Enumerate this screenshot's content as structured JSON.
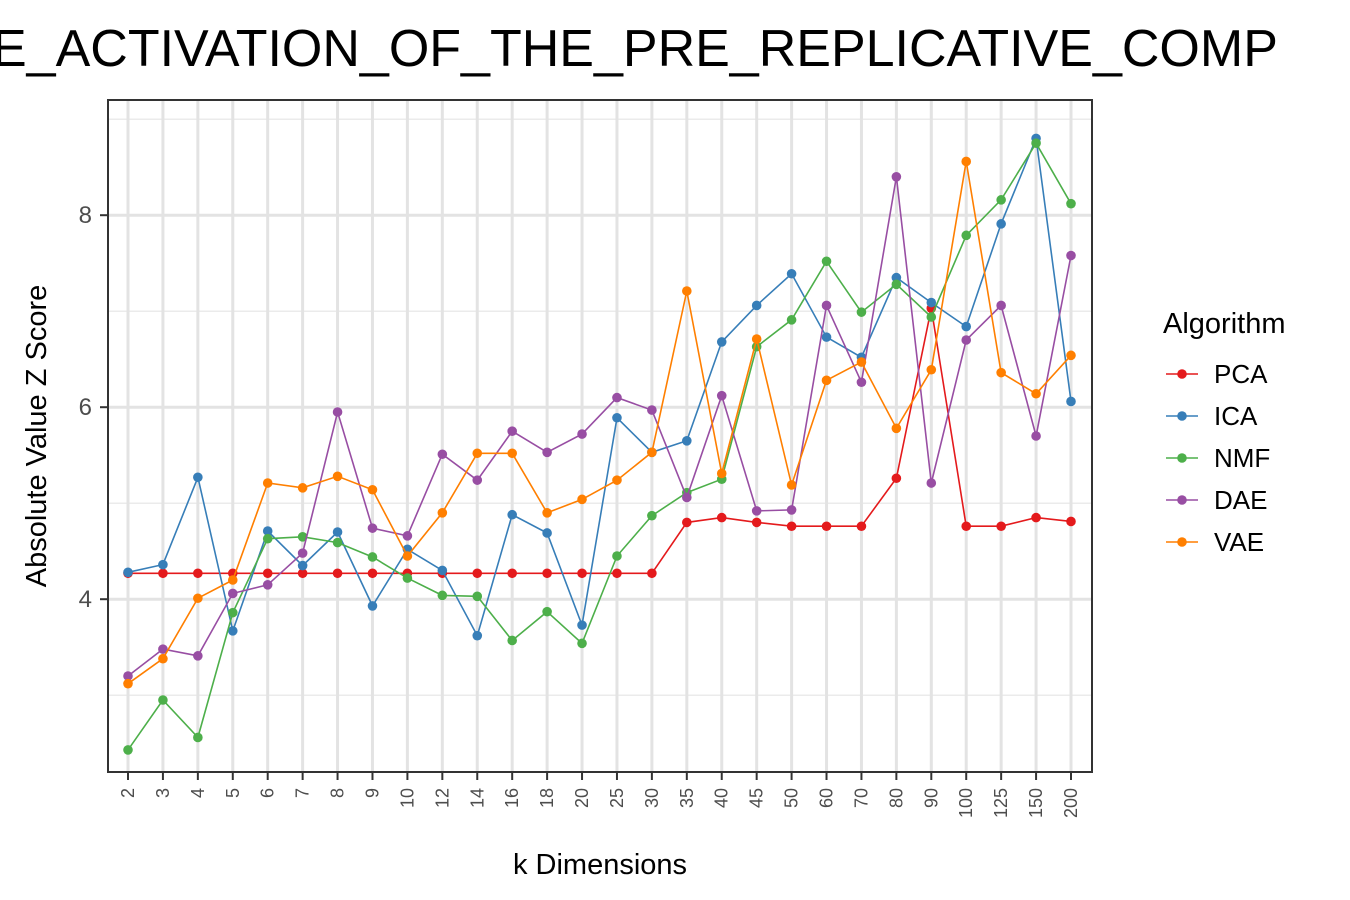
{
  "chart_data": {
    "type": "line",
    "title": "E_ACTIVATION_OF_THE_PRE_REPLICATIVE_COMP",
    "xlabel": "k Dimensions",
    "ylabel": "Absolute Value Z Score",
    "x": [
      "2",
      "3",
      "4",
      "5",
      "6",
      "7",
      "8",
      "9",
      "10",
      "12",
      "14",
      "16",
      "18",
      "20",
      "25",
      "30",
      "35",
      "40",
      "45",
      "50",
      "60",
      "70",
      "80",
      "90",
      "100",
      "125",
      "150",
      "200"
    ],
    "y_ticks": [
      "4",
      "6",
      "8"
    ],
    "ylim": [
      2.2,
      9.2
    ],
    "grid": true,
    "legend": {
      "title": "Algorithm",
      "position": "right"
    },
    "series": [
      {
        "name": "PCA",
        "color": "#E41A1C",
        "values": [
          4.27,
          4.27,
          4.27,
          4.27,
          4.27,
          4.27,
          4.27,
          4.27,
          4.27,
          4.27,
          4.27,
          4.27,
          4.27,
          4.27,
          4.27,
          4.27,
          4.8,
          4.85,
          4.8,
          4.76,
          4.76,
          4.76,
          5.26,
          7.03,
          4.76,
          4.76,
          4.85,
          4.81
        ]
      },
      {
        "name": "ICA",
        "color": "#377EB8",
        "values": [
          4.28,
          4.36,
          5.27,
          3.67,
          4.71,
          4.35,
          4.7,
          3.93,
          4.52,
          4.3,
          3.62,
          4.88,
          4.69,
          3.73,
          5.89,
          5.53,
          5.65,
          6.68,
          7.06,
          7.39,
          6.73,
          6.52,
          7.35,
          7.09,
          6.84,
          7.91,
          8.8,
          6.06
        ]
      },
      {
        "name": "NMF",
        "color": "#4DAF4A",
        "values": [
          2.43,
          2.95,
          2.56,
          3.86,
          4.63,
          4.65,
          4.59,
          4.44,
          4.22,
          4.04,
          4.03,
          3.57,
          3.87,
          3.54,
          4.45,
          4.87,
          5.11,
          5.25,
          6.63,
          6.91,
          7.52,
          6.99,
          7.28,
          6.94,
          7.79,
          8.16,
          8.75,
          8.12
        ]
      },
      {
        "name": "DAE",
        "color": "#984EA3",
        "values": [
          3.2,
          3.48,
          3.41,
          4.06,
          4.15,
          4.48,
          5.95,
          4.74,
          4.66,
          5.51,
          5.24,
          5.75,
          5.53,
          5.72,
          6.1,
          5.97,
          5.06,
          6.12,
          4.92,
          4.93,
          7.06,
          6.26,
          8.4,
          5.21,
          6.7,
          7.06,
          5.7,
          7.58
        ]
      },
      {
        "name": "VAE",
        "color": "#FF7F00",
        "values": [
          3.12,
          3.38,
          4.01,
          4.2,
          5.21,
          5.16,
          5.28,
          5.14,
          4.45,
          4.9,
          5.52,
          5.52,
          4.9,
          5.04,
          5.24,
          5.53,
          7.21,
          5.31,
          6.71,
          5.19,
          6.28,
          6.47,
          5.78,
          6.39,
          8.56,
          6.36,
          6.14,
          6.54
        ]
      }
    ]
  }
}
